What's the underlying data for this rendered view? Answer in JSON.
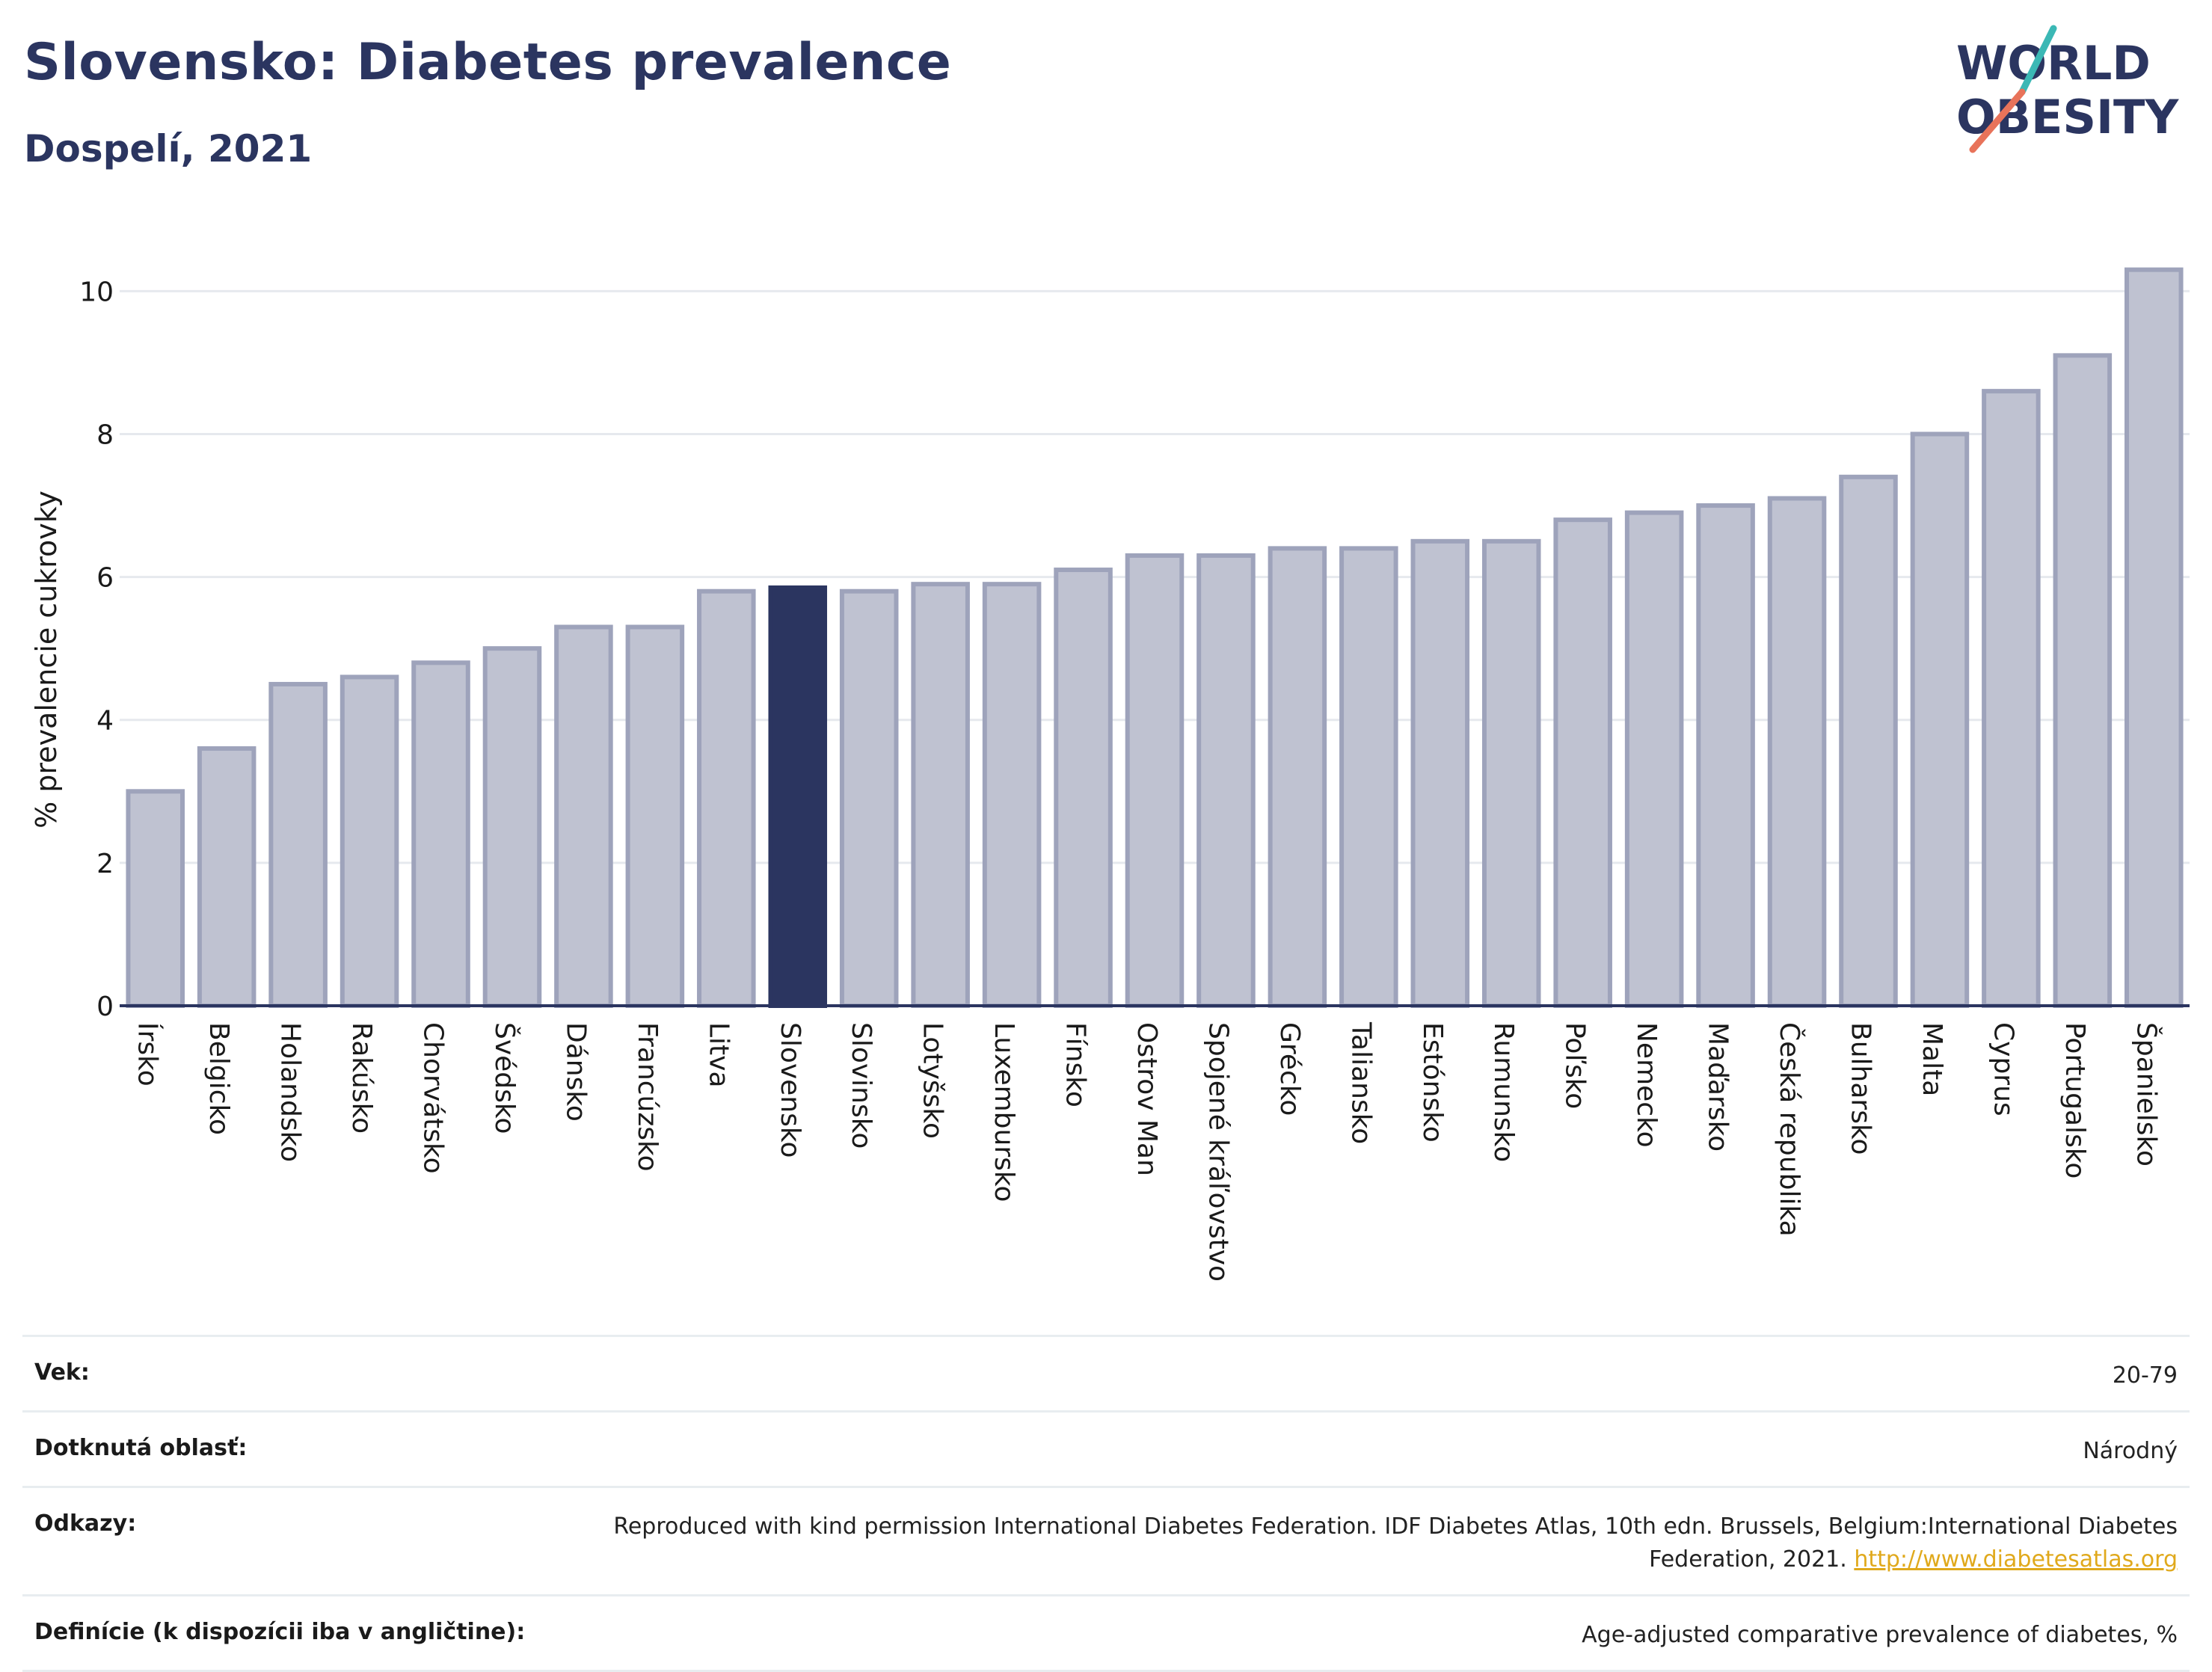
{
  "title": "Slovensko: Diabetes prevalence",
  "subtitle": "Dospelí, 2021",
  "logo": {
    "line1": "WORLD",
    "line2": "OBESITY",
    "accent_teal": "#3bb8b5",
    "accent_red": "#e8735a"
  },
  "colors": {
    "bar_default": "#bfc2d1",
    "bar_default_border": "#9ea3bb",
    "bar_highlight": "#2b3560",
    "text_dark": "#2b3560",
    "grid": "#e6e9ee"
  },
  "chart_data": {
    "type": "bar",
    "ylabel": "% prevalencie cukrovky",
    "ylim": [
      0,
      10.6
    ],
    "yticks": [
      0,
      2,
      4,
      6,
      8,
      10
    ],
    "grid": true,
    "highlight": "Slovensko",
    "categories": [
      "Írsko",
      "Belgicko",
      "Holandsko",
      "Rakúsko",
      "Chorvátsko",
      "Švédsko",
      "Dánsko",
      "Francúzsko",
      "Litva",
      "Slovensko",
      "Slovinsko",
      "Lotyšsko",
      "Luxembursko",
      "Fínsko",
      "Ostrov Man",
      "Spojené kráľovstvo",
      "Grécko",
      "Taliansko",
      "Estónsko",
      "Rumunsko",
      "Poľsko",
      "Nemecko",
      "Maďarsko",
      "Česká republika",
      "Bulharsko",
      "Malta",
      "Cyprus",
      "Portugalsko",
      "Španielsko"
    ],
    "values": [
      3.0,
      3.6,
      4.5,
      4.6,
      4.8,
      5.0,
      5.3,
      5.3,
      5.8,
      5.85,
      5.8,
      5.9,
      5.9,
      6.1,
      6.3,
      6.3,
      6.4,
      6.4,
      6.5,
      6.5,
      6.8,
      6.9,
      7.0,
      7.1,
      7.4,
      8.0,
      8.6,
      9.1,
      10.3
    ]
  },
  "meta": {
    "age_label": "Vek:",
    "age_value": "20-79",
    "area_label": "Dotknutá oblasť:",
    "area_value": "Národný",
    "refs_label": "Odkazy:",
    "refs_text": "Reproduced with kind permission International Diabetes Federation.  IDF Diabetes Atlas, 10th edn. Brussels, Belgium:International Diabetes Federation, 2021. ",
    "refs_link": "http://www.diabetesatlas.org",
    "def_label": "Definície (k dispozícii iba v angličtine):",
    "def_value": "Age-adjusted comparative prevalence of diabetes, %"
  }
}
